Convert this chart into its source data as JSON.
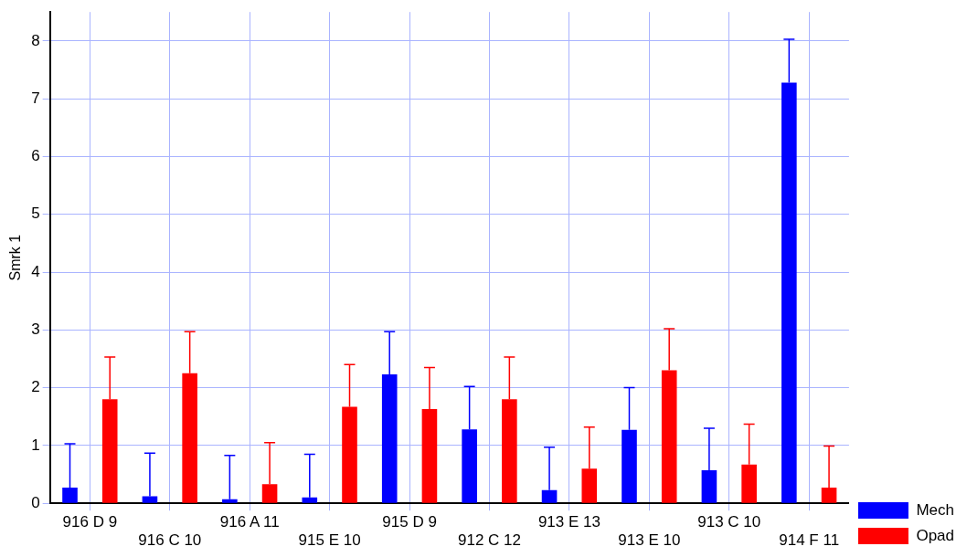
{
  "chart_data": {
    "type": "bar",
    "ylabel": "Smrk 1",
    "categories": [
      "916 D 9",
      "916 C 10",
      "916 A 11",
      "915 E 10",
      "915 D 9",
      "912 C 12",
      "913 E 13",
      "913 E 10",
      "913 C 10",
      "914 F 11"
    ],
    "series": [
      {
        "name": "Mech",
        "color": "#0000ff",
        "values": [
          0.27,
          0.12,
          0.07,
          0.1,
          2.23,
          1.28,
          0.23,
          1.27,
          0.57,
          7.28
        ],
        "errors": [
          [
            0.27,
            1.03
          ],
          [
            0.12,
            0.87
          ],
          [
            0.07,
            0.83
          ],
          [
            0.1,
            0.85
          ],
          [
            2.23,
            2.97
          ],
          [
            1.28,
            2.02
          ],
          [
            0.23,
            0.97
          ],
          [
            1.27,
            2.0
          ],
          [
            0.57,
            1.3
          ],
          [
            7.28,
            8.03
          ]
        ]
      },
      {
        "name": "Opad",
        "color": "#ff0000",
        "values": [
          1.8,
          2.25,
          0.33,
          1.67,
          1.63,
          1.8,
          0.6,
          2.3,
          0.67,
          0.27
        ],
        "errors": [
          [
            1.8,
            2.53
          ],
          [
            2.25,
            2.97
          ],
          [
            0.33,
            1.05
          ],
          [
            1.67,
            2.4
          ],
          [
            1.63,
            2.35
          ],
          [
            1.8,
            2.53
          ],
          [
            0.6,
            1.32
          ],
          [
            2.3,
            3.02
          ],
          [
            0.67,
            1.37
          ],
          [
            0.27,
            0.99
          ]
        ]
      }
    ],
    "ylim": [
      0,
      8.5
    ],
    "yticks": [
      0,
      1,
      2,
      3,
      4,
      5,
      6,
      7,
      8
    ],
    "grid": true,
    "legend": "bottom right"
  }
}
